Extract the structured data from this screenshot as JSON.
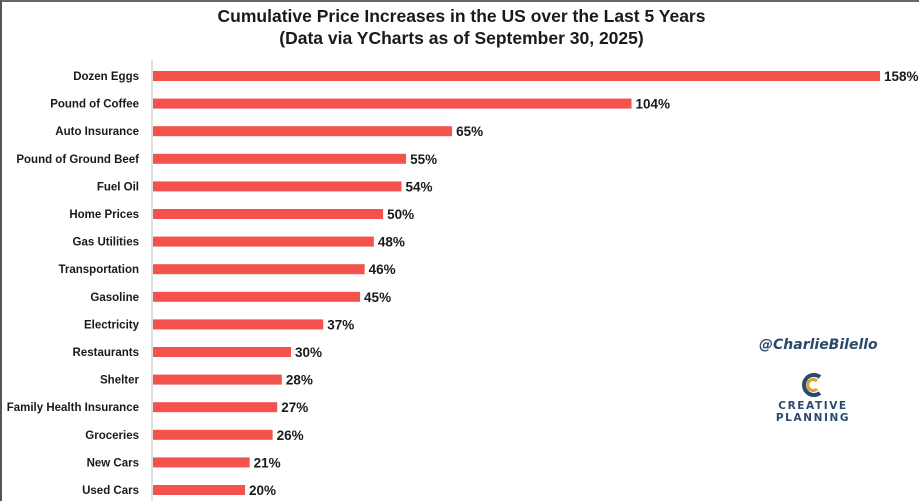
{
  "chart_data": {
    "type": "bar",
    "orientation": "horizontal",
    "title": "Cumulative Price Increases in the US over the Last 5 Years",
    "subtitle": "(Data via YCharts as of September 30, 2025)",
    "categories": [
      "Dozen Eggs",
      "Pound of Coffee",
      "Auto Insurance",
      "Pound of Ground Beef",
      "Fuel Oil",
      "Home Prices",
      "Gas Utilities",
      "Transportation",
      "Gasoline",
      "Electricity",
      "Restaurants",
      "Shelter",
      "Family Health Insurance",
      "Groceries",
      "New Cars",
      "Used Cars"
    ],
    "values": [
      158,
      104,
      65,
      55,
      54,
      50,
      48,
      46,
      45,
      37,
      30,
      28,
      27,
      26,
      21,
      20
    ],
    "value_labels": [
      "158%",
      "104%",
      "65%",
      "55%",
      "54%",
      "50%",
      "48%",
      "46%",
      "45%",
      "37%",
      "30%",
      "28%",
      "27%",
      "26%",
      "21%",
      "20%"
    ],
    "unit": "%",
    "xlim": [
      0,
      158
    ],
    "bar_color": "#f4524d",
    "grid": false,
    "legend": "none"
  },
  "watermark": {
    "handle": "@CharlieBilello",
    "logo_line1": "CREATIVE",
    "logo_line2": "PLANNING",
    "logo_color": "#2a4a6b",
    "accent_color": "#e0a030"
  }
}
